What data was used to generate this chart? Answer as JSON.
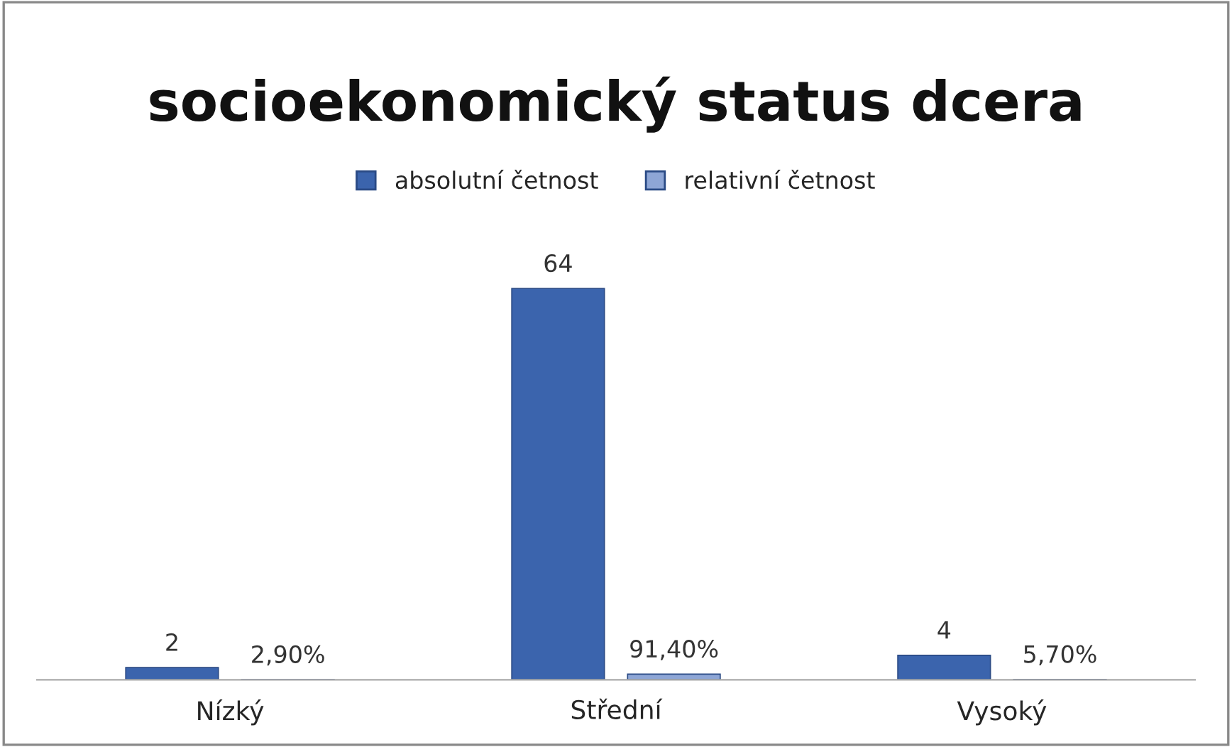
{
  "chart_data": {
    "type": "bar",
    "title": "socioekonomický status dcera",
    "categories": [
      "Nízký",
      "Střední",
      "Vysoký"
    ],
    "series": [
      {
        "name": "absolutní četnost",
        "color": "#3b64ad",
        "values": [
          2,
          64,
          4
        ],
        "value_labels": [
          "2",
          "64",
          "4"
        ]
      },
      {
        "name": "relativní četnost",
        "color": "#8ea6d6",
        "values": [
          0.029,
          0.914,
          0.057
        ],
        "value_labels": [
          "2,90%",
          "91,40%",
          "5,70%"
        ]
      }
    ],
    "legend": "top",
    "grid": false
  }
}
